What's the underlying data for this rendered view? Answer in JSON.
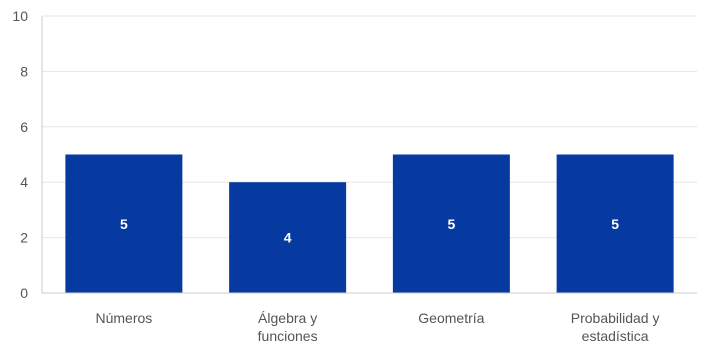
{
  "chart_data": {
    "type": "bar",
    "categories": [
      "Números",
      "Álgebra y funciones",
      "Geometría",
      "Probabilidad y estadística"
    ],
    "category_lines": [
      [
        "Números"
      ],
      [
        "Álgebra y",
        "funciones"
      ],
      [
        "Geometría"
      ],
      [
        "Probabilidad y",
        "estadística"
      ]
    ],
    "values": [
      5,
      4,
      5,
      5
    ],
    "data_labels": [
      "5",
      "4",
      "5",
      "5"
    ],
    "title": "",
    "xlabel": "",
    "ylabel": "",
    "ylim": [
      0,
      10
    ],
    "yticks": [
      0,
      2,
      4,
      6,
      8,
      10
    ],
    "grid": true,
    "legend": "none",
    "colors": {
      "bar": "#073aa0",
      "grid": "#e6e6e6",
      "axis": "#cccccc",
      "label": "#555555",
      "data_label": "#ffffff"
    }
  }
}
